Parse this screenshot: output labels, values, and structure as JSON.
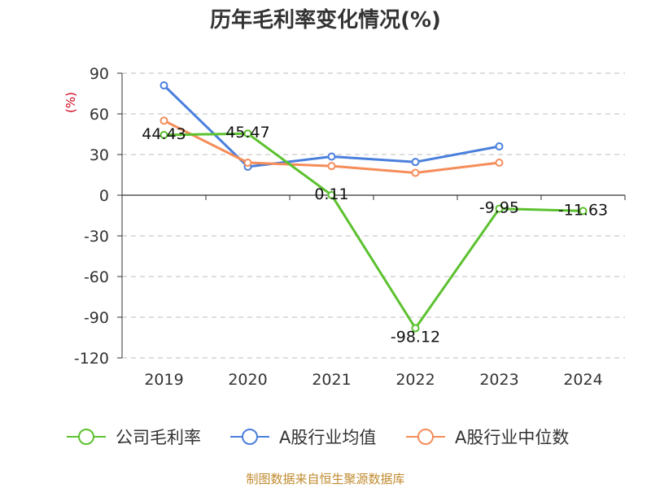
{
  "chart_data": {
    "type": "line",
    "title": "历年毛利率变化情况(%)",
    "ylabel": "(%)",
    "categories": [
      "2019",
      "2020",
      "2021",
      "2022",
      "2023",
      "2024"
    ],
    "ylim": [
      -120,
      90
    ],
    "yticks": [
      90,
      60,
      30,
      0,
      -30,
      -60,
      -90,
      -120
    ],
    "grid": true,
    "legend_position": "bottom",
    "series": [
      {
        "name": "公司毛利率",
        "color": "#5cc12f",
        "values": [
          44.43,
          45.47,
          0.11,
          -98.12,
          -9.95,
          -11.63
        ],
        "labels": [
          "44.43",
          "45.47",
          "0.11",
          "-98.12",
          "-9.95",
          "-11.63"
        ]
      },
      {
        "name": "A股行业均值",
        "color": "#4a7fdc",
        "values": [
          81,
          21,
          28.5,
          24.5,
          36,
          null
        ]
      },
      {
        "name": "A股行业中位数",
        "color": "#f58d5a",
        "values": [
          55,
          24,
          21.5,
          16.5,
          24,
          null
        ]
      }
    ]
  },
  "source": "制图数据来自恒生聚源数据库"
}
